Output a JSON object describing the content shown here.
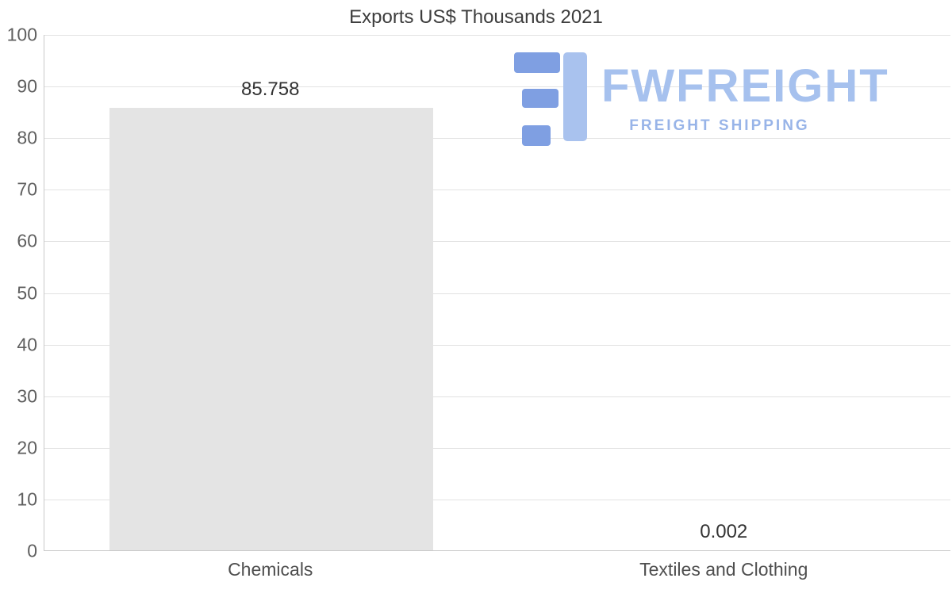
{
  "page": {
    "title": "Exports US$ Thousands 2021"
  },
  "chart_data": {
    "type": "bar",
    "title": "Exports US$ Thousands 2021",
    "categories": [
      "Chemicals",
      "Textiles and Clothing"
    ],
    "values": [
      85.758,
      0.002
    ],
    "value_labels": [
      "85.758",
      "0.002"
    ],
    "xlabel": "",
    "ylabel": "",
    "ylim": [
      0,
      100
    ],
    "yticks": [
      0,
      10,
      20,
      30,
      40,
      50,
      60,
      70,
      80,
      90,
      100
    ],
    "grid": true,
    "legend": "none",
    "bar_color": "#e4e4e4"
  },
  "watermark": {
    "brand": "FWFREIGHT",
    "tagline": "FREIGHT SHIPPING",
    "icon": "fwfreight-logo-icon",
    "brand_color": "#a6c1ee"
  }
}
